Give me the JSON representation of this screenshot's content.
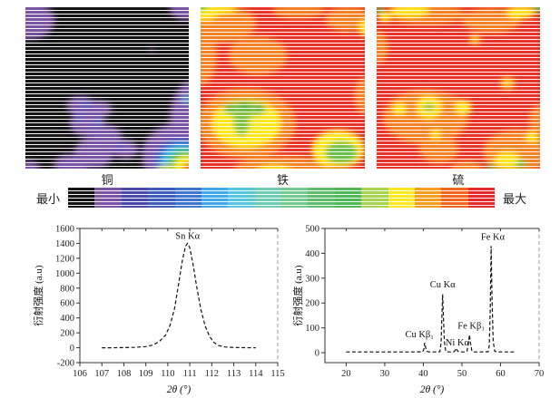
{
  "maps": {
    "panels": [
      {
        "label": "铜",
        "bg": "#151515",
        "blobs": [
          [
            2,
            8,
            16,
            12,
            "#7B52A5"
          ],
          [
            99,
            1,
            11,
            7,
            "#7B52A5"
          ],
          [
            77,
            26,
            1.4,
            1.4,
            "#7B52A5"
          ],
          [
            101,
            72,
            13,
            26,
            "#7B52A5"
          ],
          [
            98,
            57,
            2.2,
            2.2,
            "#45B8E0"
          ],
          [
            34,
            61,
            9,
            6,
            "#7B52A5"
          ],
          [
            46,
            63,
            7,
            5,
            "#7B52A5"
          ],
          [
            38,
            72,
            11,
            8,
            "#7B52A5"
          ],
          [
            50,
            80,
            9,
            7,
            "#7B52A5"
          ],
          [
            42,
            90,
            12,
            10,
            "#7B52A5"
          ],
          [
            61,
            88,
            8,
            6,
            "#7B52A5"
          ],
          [
            28,
            98,
            11,
            7,
            "#7B52A5"
          ],
          [
            2,
            100,
            7,
            5,
            "#7B52A5"
          ],
          [
            37,
            60,
            2.6,
            2.4,
            "#4A5FC1"
          ],
          [
            44,
            71,
            2.6,
            2.4,
            "#4A5FC1"
          ],
          [
            33,
            68,
            2.2,
            2,
            "#4A5FC1"
          ],
          [
            58,
            86,
            2.2,
            2,
            "#4A5FC1"
          ],
          [
            93,
            92,
            22,
            20,
            "#7B52A5"
          ],
          [
            95,
            95,
            16,
            14,
            "#3F64C8"
          ],
          [
            96,
            96,
            13,
            11,
            "#3FB8E8"
          ],
          [
            97,
            97,
            10,
            9,
            "#4DBE50"
          ],
          [
            98,
            98,
            7,
            6,
            "#FFE81E"
          ],
          [
            86,
            101,
            6,
            3,
            "#BFD435"
          ],
          [
            100,
            100,
            4,
            3.5,
            "#F1592A"
          ]
        ]
      },
      {
        "label": "铁",
        "bg": "#E9332A",
        "blobs": [
          [
            12,
            10,
            22,
            12,
            "#F58220"
          ],
          [
            0,
            30,
            10,
            18,
            "#F58220"
          ],
          [
            35,
            30,
            18,
            12,
            "#F58220"
          ],
          [
            60,
            2,
            16,
            5,
            "#F58220"
          ],
          [
            2,
            2,
            10,
            6,
            "#FFE81E"
          ],
          [
            12,
            1,
            10,
            3,
            "#FFE81E"
          ],
          [
            1,
            -1,
            3.5,
            3,
            "#4DBE50"
          ],
          [
            90,
            7,
            14,
            8,
            "#F58220"
          ],
          [
            101,
            13,
            4,
            5,
            "#FFE81E"
          ],
          [
            28,
            72,
            30,
            22,
            "#F58220"
          ],
          [
            28,
            72,
            21,
            15,
            "#FFE81E"
          ],
          [
            27,
            63,
            13,
            5,
            "#7DC242"
          ],
          [
            25,
            71,
            5,
            9,
            "#7DC242"
          ],
          [
            17,
            63,
            2.8,
            2.6,
            "#3FAE49"
          ],
          [
            27,
            61,
            3,
            2.6,
            "#3FAE49"
          ],
          [
            37,
            63,
            2.8,
            2.6,
            "#3FAE49"
          ],
          [
            50,
            101,
            30,
            9,
            "#F58220"
          ],
          [
            45,
            104,
            12,
            6,
            "#FFE81E"
          ],
          [
            84,
            88,
            16,
            12,
            "#FFE81E"
          ],
          [
            86,
            90,
            10,
            7,
            "#6BBE4C"
          ],
          [
            102,
            55,
            8,
            12,
            "#F58220"
          ]
        ]
      },
      {
        "label": "硫",
        "bg": "#E9332A",
        "blobs": [
          [
            30,
            4,
            24,
            7,
            "#F58220"
          ],
          [
            20,
            2,
            12,
            4,
            "#FFE81E"
          ],
          [
            70,
            8,
            18,
            8,
            "#F58220"
          ],
          [
            88,
            3,
            9,
            4,
            "#FFE81E"
          ],
          [
            99,
            0,
            3.5,
            3,
            "#4DBE50"
          ],
          [
            2,
            2,
            2.8,
            2.5,
            "#4DBE50"
          ],
          [
            5,
            6,
            4,
            3,
            "#FFE81E"
          ],
          [
            0,
            25,
            7,
            10,
            "#F58220"
          ],
          [
            60,
            20,
            4,
            3.5,
            "#F58220"
          ],
          [
            60,
            20,
            2,
            1.8,
            "#FFE81E"
          ],
          [
            30,
            68,
            26,
            17,
            "#F58220"
          ],
          [
            38,
            88,
            12,
            9,
            "#F58220"
          ],
          [
            32,
            62,
            7.5,
            7,
            "#FFE81E"
          ],
          [
            32,
            62,
            3.2,
            3,
            "#9CB53C"
          ],
          [
            14,
            63,
            4,
            3.5,
            "#FFE81E"
          ],
          [
            53,
            62,
            5,
            4.5,
            "#FFE81E"
          ],
          [
            36,
            79,
            3,
            2.8,
            "#FFE81E"
          ],
          [
            80,
            47,
            5,
            4.5,
            "#F58220"
          ],
          [
            80,
            47,
            2.4,
            2.2,
            "#FFE81E"
          ],
          [
            85,
            90,
            20,
            14,
            "#F58220"
          ],
          [
            80,
            95,
            8,
            5,
            "#FFE81E"
          ],
          [
            88,
            97,
            3,
            2.8,
            "#4DBE50"
          ],
          [
            70,
            100,
            2.6,
            2.4,
            "#4DBE50"
          ],
          [
            95,
            80,
            4,
            3.5,
            "#FFE81E"
          ],
          [
            101,
            70,
            8,
            10,
            "#F58220"
          ],
          [
            55,
            101,
            10,
            6,
            "#F58220"
          ]
        ]
      }
    ],
    "colorbar": {
      "min_label": "最小",
      "max_label": "最大",
      "colors": [
        "#141414",
        "#7B52A5",
        "#4747AE",
        "#3C5CC4",
        "#3D74D6",
        "#3FA8EF",
        "#55C6E0",
        "#6FCBB4",
        "#74C98C",
        "#5CBE69",
        "#4FB957",
        "#A7D44F",
        "#FFE920",
        "#F89C1B",
        "#F2651F",
        "#E9282C"
      ]
    }
  },
  "chart_data": [
    {
      "type": "line",
      "title": "",
      "xlabel": "2θ (°)",
      "ylabel": "衍射强度 (a.u)",
      "xlim": [
        106,
        115
      ],
      "ylim": [
        -200,
        1600
      ],
      "xticks": [
        106,
        107,
        108,
        109,
        110,
        111,
        112,
        113,
        114,
        115
      ],
      "yticks": [
        -200,
        0,
        200,
        400,
        600,
        800,
        1000,
        1200,
        1400,
        1600
      ],
      "line_style": "dashed",
      "grid": false,
      "annotations": [
        {
          "text": "Sn Kα",
          "x": 110.9,
          "y": 1460
        }
      ],
      "points": [
        [
          107,
          0
        ],
        [
          107.5,
          0
        ],
        [
          108,
          2
        ],
        [
          108.5,
          5
        ],
        [
          109,
          15
        ],
        [
          109.3,
          35
        ],
        [
          109.6,
          80
        ],
        [
          109.9,
          170
        ],
        [
          110.1,
          300
        ],
        [
          110.3,
          520
        ],
        [
          110.5,
          870
        ],
        [
          110.65,
          1150
        ],
        [
          110.8,
          1360
        ],
        [
          110.9,
          1400
        ],
        [
          111.0,
          1340
        ],
        [
          111.15,
          1120
        ],
        [
          111.3,
          840
        ],
        [
          111.5,
          520
        ],
        [
          111.7,
          290
        ],
        [
          111.9,
          150
        ],
        [
          112.1,
          70
        ],
        [
          112.3,
          30
        ],
        [
          112.6,
          10
        ],
        [
          113,
          3
        ],
        [
          113.5,
          1
        ],
        [
          114,
          0
        ]
      ]
    },
    {
      "type": "line",
      "title": "",
      "xlabel": "2θ (°)",
      "ylabel": "衍射强度 (a.u)",
      "xlim": [
        14.5,
        70
      ],
      "ylim": [
        -40,
        500
      ],
      "xticks": [
        20,
        30,
        40,
        50,
        60,
        70
      ],
      "yticks": [
        0,
        100,
        200,
        300,
        400,
        500
      ],
      "line_style": "dashed",
      "grid": false,
      "annotations": [
        {
          "text": "Cu Kβ₁",
          "x": 39.0,
          "y": 62
        },
        {
          "text": "Cu Kα",
          "x": 45.0,
          "y": 262
        },
        {
          "text": "Ni Kα",
          "x": 48.8,
          "y": 30
        },
        {
          "text": "Fe Kβ₁",
          "x": 52.4,
          "y": 96
        },
        {
          "text": "Fe Kα",
          "x": 58.0,
          "y": 455
        }
      ],
      "points": [
        [
          20,
          3
        ],
        [
          25,
          3
        ],
        [
          30,
          3
        ],
        [
          35,
          3
        ],
        [
          38,
          3
        ],
        [
          39.8,
          4
        ],
        [
          40.1,
          12
        ],
        [
          40.35,
          40
        ],
        [
          40.6,
          20
        ],
        [
          40.9,
          6
        ],
        [
          41.4,
          3
        ],
        [
          43,
          3
        ],
        [
          44.3,
          4
        ],
        [
          44.6,
          40
        ],
        [
          44.8,
          140
        ],
        [
          45.0,
          235
        ],
        [
          45.2,
          150
        ],
        [
          45.45,
          45
        ],
        [
          45.8,
          5
        ],
        [
          46.5,
          3
        ],
        [
          47.8,
          3
        ],
        [
          48.1,
          6
        ],
        [
          48.45,
          18
        ],
        [
          48.8,
          8
        ],
        [
          49.2,
          3
        ],
        [
          50.8,
          3
        ],
        [
          51.3,
          6
        ],
        [
          51.7,
          40
        ],
        [
          51.95,
          72
        ],
        [
          52.2,
          40
        ],
        [
          52.6,
          6
        ],
        [
          53.2,
          3
        ],
        [
          55,
          3
        ],
        [
          56.8,
          4
        ],
        [
          57.1,
          30
        ],
        [
          57.35,
          180
        ],
        [
          57.55,
          430
        ],
        [
          57.8,
          220
        ],
        [
          58.1,
          45
        ],
        [
          58.5,
          6
        ],
        [
          59.2,
          3
        ],
        [
          61,
          3
        ],
        [
          64,
          3
        ]
      ]
    }
  ]
}
